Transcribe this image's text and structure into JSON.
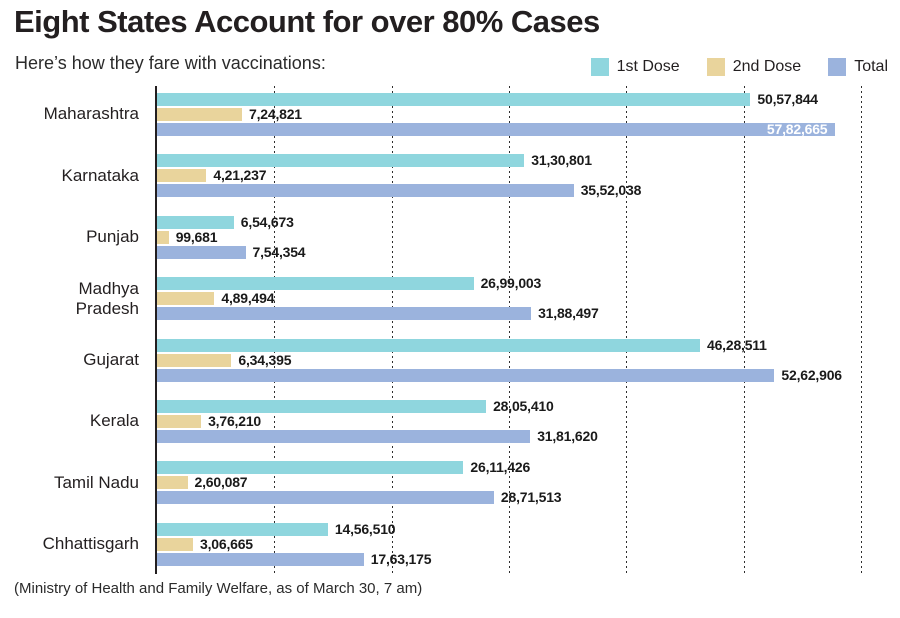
{
  "header": {
    "title": "Eight States Account for over 80% Cases",
    "subtitle": "Here’s how they fare with vaccinations:"
  },
  "footer": {
    "source": "(Ministry of Health and Family Welfare, as of March 30, 7 am)"
  },
  "colors": {
    "first_dose": "#8fd6de",
    "second_dose": "#e9d49c",
    "total": "#9bb3dd",
    "text": "#231f20",
    "grid": "#2e2e2e",
    "inside_label": "#ffffff"
  },
  "chart_data": {
    "type": "bar",
    "orientation": "horizontal",
    "title": "Eight States Account for over 80% Cases",
    "subtitle": "Here’s how they fare with vaccinations:",
    "source_note": "(Ministry of Health and Family Welfare, as of March 30, 7 am)",
    "legend_position": "top-right",
    "grid": "dotted-vertical",
    "categories": [
      "Maharashtra",
      "Karnataka",
      "Punjab",
      "Madhya\nPradesh",
      "Gujarat",
      "Kerala",
      "Tamil Nadu",
      "Chhattisgarh"
    ],
    "series": [
      {
        "name": "1st Dose",
        "color_key": "first_dose",
        "values": [
          5057844,
          3130801,
          654673,
          2699003,
          4628511,
          2805410,
          2611426,
          1456510
        ],
        "labels": [
          "50,57,844",
          "31,30,801",
          "6,54,673",
          "26,99,003",
          "46,28,511",
          "28,05,410",
          "26,11,426",
          "14,56,510"
        ]
      },
      {
        "name": "2nd Dose",
        "color_key": "second_dose",
        "values": [
          724821,
          421237,
          99681,
          489494,
          634395,
          376210,
          260087,
          306665
        ],
        "labels": [
          "7,24,821",
          "4,21,237",
          "99,681",
          "4,89,494",
          "6,34,395",
          "3,76,210",
          "2,60,087",
          "3,06,665"
        ]
      },
      {
        "name": "Total",
        "color_key": "total",
        "values": [
          5782665,
          3552038,
          754354,
          3188497,
          5262906,
          3181620,
          2871513,
          1763175
        ],
        "labels": [
          "57,82,665",
          "35,52,038",
          "7,54,354",
          "31,88,497",
          "52,62,906",
          "31,81,620",
          "28,71,513",
          "17,63,175"
        ]
      }
    ],
    "inside_labels": [
      {
        "series_index": 2,
        "category_index": 0
      }
    ],
    "axis": {
      "xmin": 0,
      "xmax": 6163000,
      "gridline_interval": 1000000,
      "gridline_count": 6
    }
  }
}
